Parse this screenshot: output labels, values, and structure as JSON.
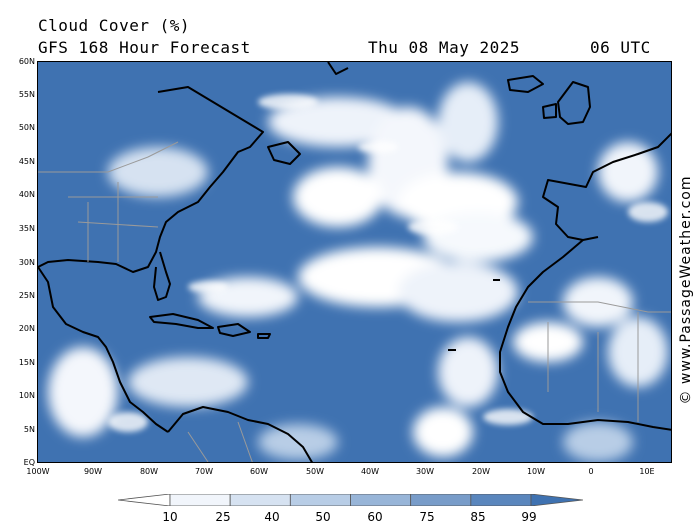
{
  "title": {
    "variable": "Cloud Cover (%)",
    "model": "GFS 168 Hour Forecast",
    "date": "Thu 08 May 2025",
    "time": "06 UTC"
  },
  "credit": "© www.PassageWeather.com",
  "map": {
    "lat_labels": [
      "60N",
      "55N",
      "50N",
      "45N",
      "40N",
      "35N",
      "30N",
      "25N",
      "20N",
      "15N",
      "10N",
      "5N",
      "EQ"
    ],
    "lon_labels": [
      "100W",
      "90W",
      "80W",
      "70W",
      "60W",
      "50W",
      "40W",
      "30W",
      "20W",
      "10W",
      "0",
      "10E"
    ],
    "ocean_color": "#3f72b1",
    "land_outline_color": "#000000",
    "border_color": "#9a9a9a"
  },
  "legend": {
    "levels": [
      "10",
      "25",
      "40",
      "50",
      "60",
      "75",
      "85",
      "99"
    ],
    "colors": [
      "#ffffff",
      "#f1f5fb",
      "#d6e2f1",
      "#b8cde6",
      "#98b5d8",
      "#789cc9",
      "#5a86bd",
      "#3f72b1"
    ]
  }
}
